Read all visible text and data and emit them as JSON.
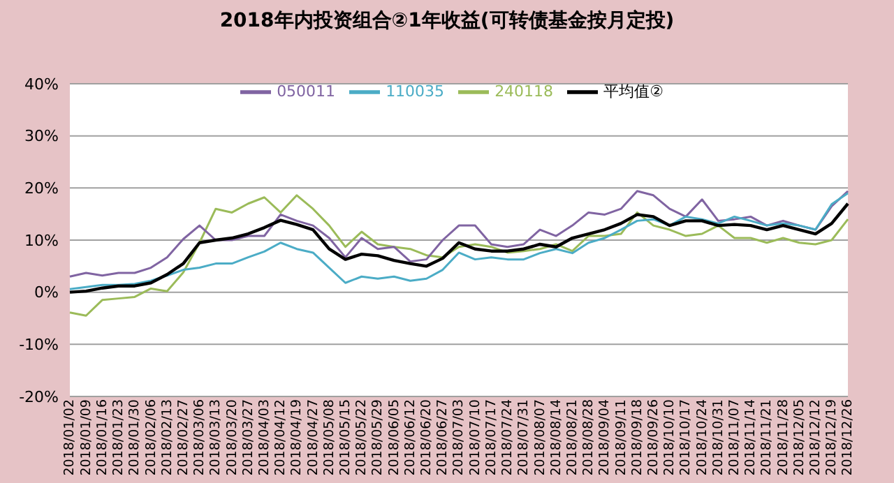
{
  "chart_data": {
    "type": "line",
    "title": "2018年内投资组合②1年收益(可转债基金按月定投)",
    "categories": [
      "2018/01/02",
      "2018/01/09",
      "2018/01/16",
      "2018/01/23",
      "2018/01/30",
      "2018/02/06",
      "2018/02/13",
      "2018/02/27",
      "2018/03/06",
      "2018/03/13",
      "2018/03/20",
      "2018/03/27",
      "2018/04/03",
      "2018/04/12",
      "2018/04/19",
      "2018/04/27",
      "2018/05/08",
      "2018/05/15",
      "2018/05/22",
      "2018/05/29",
      "2018/06/05",
      "2018/06/12",
      "2018/06/20",
      "2018/06/27",
      "2018/07/03",
      "2018/07/10",
      "2018/07/17",
      "2018/07/24",
      "2018/07/31",
      "2018/08/07",
      "2018/08/14",
      "2018/08/21",
      "2018/08/28",
      "2018/09/04",
      "2018/09/11",
      "2018/09/18",
      "2018/09/26",
      "2018/10/10",
      "2018/10/17",
      "2018/10/24",
      "2018/10/31",
      "2018/11/07",
      "2018/11/14",
      "2018/11/21",
      "2018/11/28",
      "2018/12/05",
      "2018/12/12",
      "2018/12/19",
      "2018/12/26"
    ],
    "series": [
      {
        "name": "240118",
        "color": "#9bbb59",
        "values": [
          -3.9,
          -4.5,
          -1.5,
          -1.2,
          -0.9,
          0.7,
          0.2,
          3.8,
          9.5,
          16,
          15.3,
          17,
          18.2,
          15.3,
          18.6,
          16,
          12.8,
          8.7,
          11.6,
          9.2,
          8.7,
          8.3,
          7.1,
          6.7,
          8.7,
          9.2,
          8.7,
          7.6,
          7.9,
          8.3,
          9.2,
          7.9,
          10.8,
          10.8,
          11.2,
          15.3,
          12.8,
          12,
          10.8,
          11.2,
          12.8,
          10.4,
          10.4,
          9.5,
          10.4,
          9.5,
          9.2,
          10,
          14
        ]
      },
      {
        "name": "050011",
        "color": "#8064a2",
        "values": [
          3,
          3.7,
          3.2,
          3.7,
          3.7,
          4.7,
          6.7,
          10.2,
          12.8,
          10,
          10,
          10.8,
          10.8,
          14.9,
          13.7,
          12.8,
          10.4,
          6.7,
          10.4,
          8.3,
          8.7,
          5.9,
          6.3,
          10,
          12.8,
          12.8,
          9.2,
          8.7,
          9.2,
          12,
          10.8,
          12.8,
          15.3,
          14.9,
          16,
          19.4,
          18.6,
          16,
          14.5,
          17.8,
          13.7,
          14,
          14.5,
          12.8,
          13.7,
          12.8,
          12,
          16.5,
          19.4
        ]
      },
      {
        "name": "110035",
        "color": "#4bacc6",
        "values": [
          0.6,
          1,
          1.4,
          1.4,
          1.6,
          2.2,
          3.2,
          4.3,
          4.7,
          5.5,
          5.5,
          6.7,
          7.8,
          9.5,
          8.3,
          7.6,
          4.7,
          1.8,
          3,
          2.6,
          3,
          2.2,
          2.6,
          4.3,
          7.6,
          6.3,
          6.7,
          6.3,
          6.3,
          7.5,
          8.3,
          7.5,
          9.5,
          10.4,
          12,
          13.7,
          14,
          12.8,
          14.5,
          14,
          13.2,
          14.5,
          13.7,
          12.8,
          13.2,
          12.8,
          12,
          16.9,
          19
        ]
      },
      {
        "name": "平均值②",
        "color": "#000000",
        "values": [
          0,
          0.2,
          0.8,
          1.2,
          1.2,
          1.8,
          3.4,
          5.5,
          9.5,
          10,
          10.4,
          11.2,
          12.4,
          13.8,
          13,
          12,
          8.3,
          6.3,
          7.3,
          7,
          6.1,
          5.5,
          5,
          6.5,
          9.5,
          8.3,
          7.9,
          7.9,
          8.3,
          9.2,
          8.7,
          10.4,
          11.2,
          12,
          13.2,
          14.9,
          14.5,
          12.8,
          13.7,
          13.7,
          12.8,
          13,
          12.8,
          12,
          12.8,
          12,
          11.2,
          13.2,
          17
        ]
      }
    ],
    "ylim": [
      -20,
      40
    ],
    "yticks": [
      {
        "value": -20,
        "label": "-20%"
      },
      {
        "value": -10,
        "label": "-10%"
      },
      {
        "value": 0,
        "label": "0%"
      },
      {
        "value": 10,
        "label": "10%"
      },
      {
        "value": 20,
        "label": "20%"
      },
      {
        "value": 30,
        "label": "30%"
      },
      {
        "value": 40,
        "label": "40%"
      }
    ],
    "grid": "y",
    "legend": "top",
    "marker": "none",
    "line_style": "solid"
  }
}
